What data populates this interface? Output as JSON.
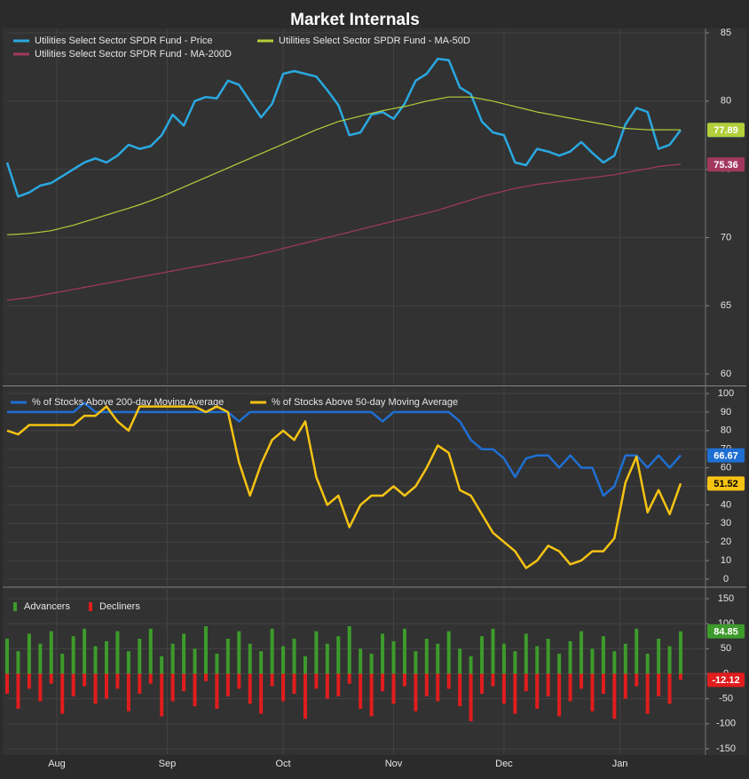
{
  "chart_data": [
    {
      "type": "line",
      "title": "Market Internals",
      "ylim": [
        60,
        85
      ],
      "yticks": [
        85,
        80,
        75,
        70,
        65,
        60
      ],
      "grid": true,
      "series": [
        {
          "name": "Utilities Select Sector SPDR Fund - Price",
          "color": "#2aa8e0",
          "values": [
            75.5,
            73,
            73.3,
            73.8,
            74,
            74.5,
            75,
            75.5,
            75.8,
            75.5,
            76,
            76.8,
            76.5,
            76.7,
            77.5,
            79,
            78.2,
            80,
            80.3,
            80.2,
            81.5,
            81.2,
            80,
            78.8,
            79.8,
            82,
            82.2,
            82,
            81.8,
            80.8,
            79.7,
            77.5,
            77.7,
            79,
            79.2,
            78.7,
            79.8,
            81.5,
            82,
            83.1,
            83,
            81,
            80.5,
            78.5,
            77.7,
            77.5,
            75.5,
            75.3,
            76.5,
            76.3,
            76,
            76.3,
            77,
            76.2,
            75.5,
            76,
            78.3,
            79.5,
            79.2,
            76.5,
            76.8,
            77.88
          ]
        },
        {
          "name": "Utilities Select Sector SPDR Fund - MA-50D",
          "color": "#b3cf3a",
          "values": [
            70.2,
            70.25,
            70.3,
            70.4,
            70.5,
            70.7,
            70.9,
            71.15,
            71.4,
            71.65,
            71.9,
            72.15,
            72.4,
            72.7,
            73.0,
            73.35,
            73.7,
            74.05,
            74.4,
            74.75,
            75.1,
            75.45,
            75.8,
            76.15,
            76.5,
            76.85,
            77.2,
            77.55,
            77.9,
            78.2,
            78.5,
            78.7,
            78.9,
            79.1,
            79.3,
            79.45,
            79.6,
            79.8,
            80.0,
            80.15,
            80.3,
            80.3,
            80.3,
            80.15,
            80.0,
            79.8,
            79.6,
            79.4,
            79.2,
            79.05,
            78.9,
            78.75,
            78.6,
            78.45,
            78.3,
            78.15,
            78.0,
            77.95,
            77.9,
            77.9,
            77.9,
            77.89
          ]
        },
        {
          "name": "Utilities Select Sector SPDR Fund - MA-200D",
          "color": "#a3385f",
          "values": [
            65.4,
            65.5,
            65.6,
            65.75,
            65.9,
            66.05,
            66.2,
            66.35,
            66.5,
            66.65,
            66.8,
            66.95,
            67.1,
            67.25,
            67.4,
            67.55,
            67.7,
            67.85,
            68.0,
            68.15,
            68.3,
            68.45,
            68.6,
            68.8,
            69.0,
            69.2,
            69.4,
            69.6,
            69.8,
            70.0,
            70.2,
            70.4,
            70.6,
            70.8,
            71.0,
            71.2,
            71.4,
            71.6,
            71.8,
            72.0,
            72.25,
            72.5,
            72.75,
            73.0,
            73.2,
            73.4,
            73.6,
            73.75,
            73.9,
            74.0,
            74.1,
            74.2,
            74.3,
            74.4,
            74.5,
            74.6,
            74.75,
            74.9,
            75.05,
            75.2,
            75.3,
            75.36
          ]
        }
      ]
    },
    {
      "type": "line",
      "ylim": [
        0,
        100
      ],
      "yticks": [
        100,
        90,
        80,
        70,
        60,
        50,
        40,
        30,
        20,
        10,
        0
      ],
      "grid": true,
      "series": [
        {
          "name": "% of Stocks Above 200-day Moving Average",
          "color": "#1f6fd3",
          "values": [
            90,
            90,
            90,
            90,
            90,
            90,
            90,
            95,
            90,
            90,
            90,
            90,
            90,
            90,
            90,
            90,
            90,
            90,
            90,
            90,
            90,
            85,
            90,
            90,
            90,
            90,
            90,
            90,
            90,
            90,
            90,
            90,
            90,
            90,
            85,
            90,
            90,
            90,
            90,
            90,
            90,
            85,
            75,
            70,
            70,
            65,
            55,
            65,
            66.67,
            66.67,
            60,
            66.67,
            60,
            60,
            45,
            50,
            66.67,
            66.67,
            60,
            66.67,
            60,
            66.67
          ]
        },
        {
          "name": "% of Stocks Above 50-day Moving Average",
          "color": "#f5c313",
          "values": [
            80,
            78,
            83,
            83,
            83,
            83,
            83,
            88,
            88,
            93,
            85,
            80,
            93,
            93,
            93,
            93,
            93,
            93,
            90,
            93,
            90,
            63,
            45,
            62,
            75,
            80,
            75,
            85,
            55,
            40,
            45,
            28,
            40,
            45,
            45,
            50,
            45,
            50,
            60,
            72,
            68,
            48,
            45,
            35,
            25,
            20,
            15,
            6,
            10,
            18,
            15,
            8,
            10,
            15,
            15,
            22,
            52,
            66,
            36,
            48,
            35,
            51.52
          ]
        }
      ]
    },
    {
      "type": "bar",
      "ylim": [
        -150,
        150
      ],
      "yticks": [
        150,
        100,
        50,
        0,
        -50,
        -100,
        -150
      ],
      "grid": true,
      "x": [
        0,
        2,
        4,
        6,
        8,
        10,
        12,
        14,
        16,
        18,
        20,
        22,
        24,
        26,
        28,
        30,
        32,
        34,
        36,
        38,
        40,
        42,
        44,
        46,
        48,
        50,
        52,
        54,
        56,
        58,
        60,
        62,
        64,
        66,
        68,
        70,
        72,
        74,
        76,
        78,
        80,
        82,
        84,
        86,
        88,
        90,
        92,
        94,
        96,
        98,
        100,
        102,
        104,
        106,
        108,
        110,
        112,
        114,
        116,
        118,
        120,
        122
      ],
      "xlim": [
        0,
        126.5
      ],
      "xticks": [
        {
          "value": 9,
          "label": "Aug"
        },
        {
          "value": 29,
          "label": "Sep"
        },
        {
          "value": 50,
          "label": "Oct"
        },
        {
          "value": 70,
          "label": "Nov"
        },
        {
          "value": 90,
          "label": "Dec"
        },
        {
          "value": 111,
          "label": "Jan"
        }
      ],
      "series": [
        {
          "name": "Advancers",
          "color": "#3d9b2b",
          "values": [
            70,
            45,
            80,
            60,
            85,
            40,
            75,
            90,
            55,
            65,
            85,
            45,
            70,
            90,
            35,
            60,
            80,
            50,
            95,
            40,
            70,
            85,
            60,
            45,
            90,
            55,
            70,
            35,
            85,
            60,
            75,
            95,
            50,
            40,
            80,
            65,
            90,
            45,
            70,
            60,
            85,
            50,
            35,
            75,
            90,
            60,
            45,
            80,
            55,
            70,
            40,
            65,
            85,
            50,
            75,
            45,
            60,
            90,
            40,
            70,
            55,
            84.85
          ]
        },
        {
          "name": "Decliners",
          "color": "#e11d1d",
          "values": [
            -40,
            -70,
            -30,
            -55,
            -20,
            -80,
            -45,
            -25,
            -60,
            -50,
            -30,
            -75,
            -40,
            -20,
            -85,
            -55,
            -35,
            -65,
            -15,
            -70,
            -45,
            -30,
            -60,
            -80,
            -25,
            -55,
            -40,
            -90,
            -30,
            -50,
            -45,
            -20,
            -70,
            -85,
            -35,
            -60,
            -25,
            -75,
            -45,
            -55,
            -30,
            -65,
            -95,
            -40,
            -25,
            -60,
            -80,
            -35,
            -70,
            -45,
            -85,
            -55,
            -30,
            -75,
            -40,
            -90,
            -50,
            -25,
            -80,
            -45,
            -60,
            -12.12
          ]
        }
      ]
    }
  ]
}
